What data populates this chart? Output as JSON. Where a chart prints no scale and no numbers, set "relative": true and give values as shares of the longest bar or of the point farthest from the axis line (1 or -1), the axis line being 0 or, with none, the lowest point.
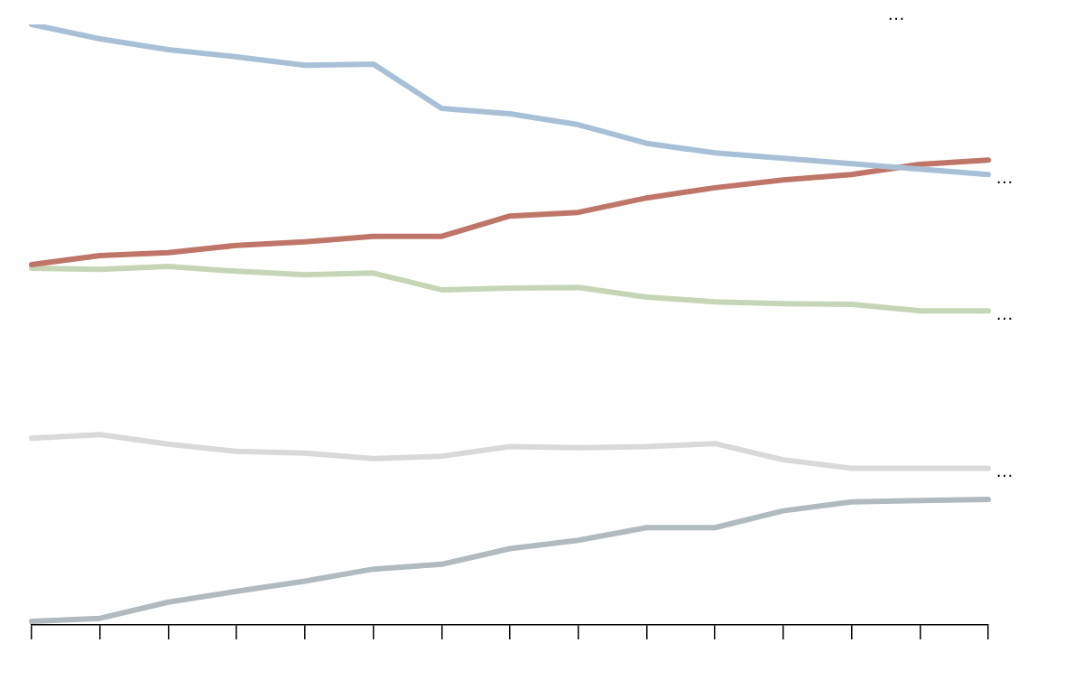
{
  "chart_data": {
    "type": "line",
    "relative": true,
    "tick_labels": false,
    "legend": false,
    "marker": "none",
    "categories": [
      null,
      null,
      null,
      null,
      null,
      null,
      null,
      null,
      null,
      null,
      null,
      null,
      null,
      null,
      null
    ],
    "annotations": [
      "…"
    ],
    "series": [
      {
        "name": "…",
        "color": "#a7c0d6",
        "values": [
          1,
          0.976,
          0.958,
          0.946,
          0.932,
          0.934,
          0.86,
          0.851,
          0.833,
          0.802,
          0.786,
          0.777,
          0.768,
          0.759,
          0.75
        ]
      },
      {
        "color": "#bf7568",
        "values": [
          0.6,
          0.615,
          0.62,
          0.632,
          0.638,
          0.647,
          0.647,
          0.681,
          0.687,
          0.711,
          0.728,
          0.741,
          0.75,
          0.767,
          0.774
        ]
      },
      {
        "name": "…",
        "color": "#c6d5b5",
        "values": [
          0.594,
          0.592,
          0.597,
          0.589,
          0.583,
          0.586,
          0.558,
          0.561,
          0.562,
          0.546,
          0.538,
          0.535,
          0.534,
          0.523,
          0.523
        ]
      },
      {
        "name": "…",
        "color": "#d9d9d9",
        "values": [
          0.311,
          0.317,
          0.301,
          0.289,
          0.286,
          0.277,
          0.281,
          0.297,
          0.295,
          0.297,
          0.302,
          0.275,
          0.261,
          0.261,
          0.261
        ]
      },
      {
        "color": "#b0babf",
        "values": [
          0.006,
          0.011,
          0.038,
          0.056,
          0.073,
          0.093,
          0.101,
          0.127,
          0.141,
          0.162,
          0.162,
          0.19,
          0.205,
          0.207,
          0.209
        ]
      }
    ]
  }
}
